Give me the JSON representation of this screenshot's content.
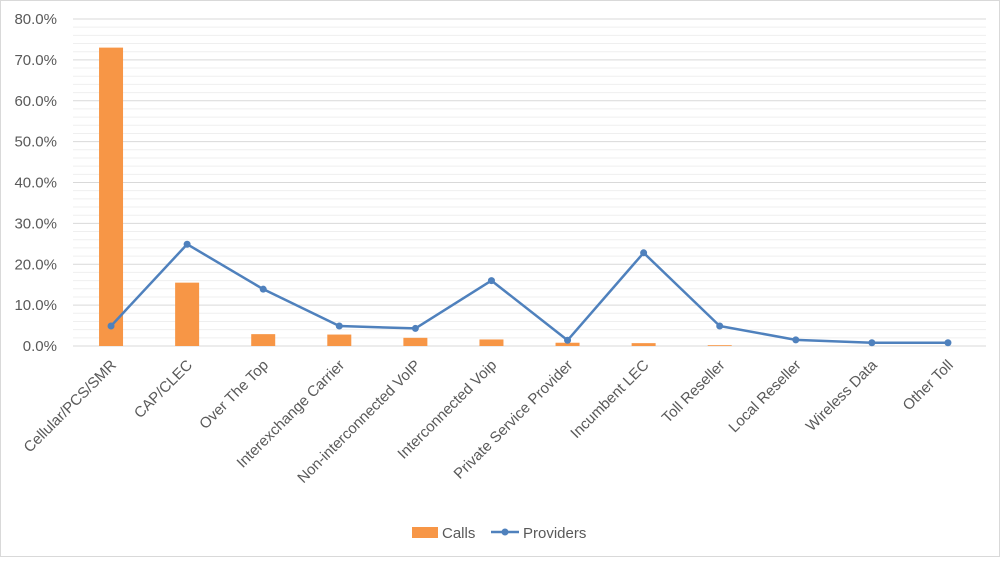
{
  "chart_data": {
    "type": "bar",
    "categories": [
      "Cellular/PCS/SMR",
      "CAP/CLEC",
      "Over The Top",
      "Interexchange Carrier",
      "Non-interconnected VoIP",
      "Interconnected Voip",
      "Private Service Provider",
      "Incumbent LEC",
      "Toll Reseller",
      "Local Reseller",
      "Wireless Data",
      "Other Toll"
    ],
    "series": [
      {
        "name": "Calls",
        "type": "bar",
        "color": "#f79646",
        "values": [
          73.0,
          15.5,
          2.9,
          2.8,
          2.0,
          1.6,
          0.8,
          0.7,
          0.2,
          0.0,
          0.0,
          0.0
        ]
      },
      {
        "name": "Providers",
        "type": "line",
        "color": "#4f81bd",
        "values": [
          4.9,
          24.9,
          13.9,
          4.9,
          4.3,
          16.0,
          1.4,
          22.8,
          4.9,
          1.5,
          0.8,
          0.8
        ]
      }
    ],
    "y_ticks": [
      "0.0%",
      "10.0%",
      "20.0%",
      "30.0%",
      "40.0%",
      "50.0%",
      "60.0%",
      "70.0%",
      "80.0%"
    ],
    "ylim": [
      0,
      80
    ],
    "grid": true,
    "legend_position": "bottom-center",
    "title": "",
    "xlabel": "",
    "ylabel": ""
  }
}
